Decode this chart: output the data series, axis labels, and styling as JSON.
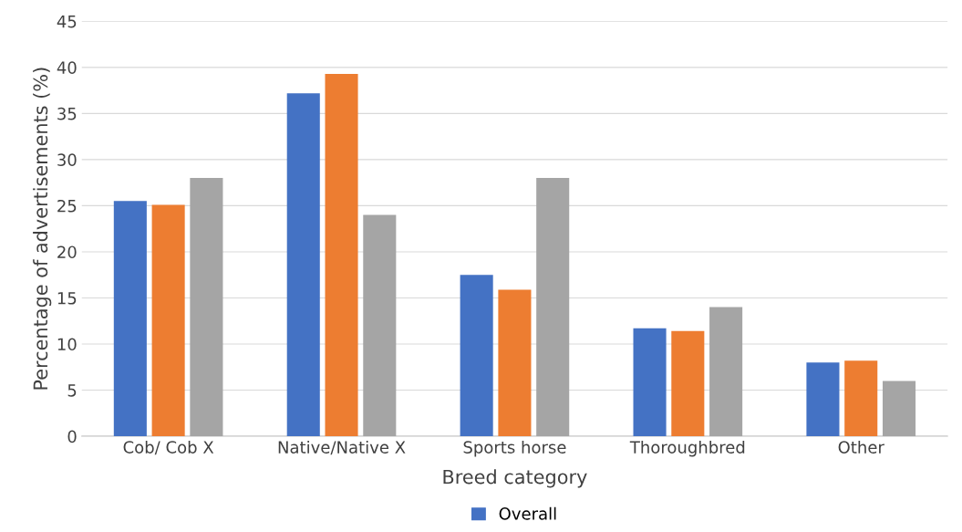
{
  "chart_data": {
    "type": "bar",
    "xlabel": "Breed category",
    "ylabel": "Percentage of advertisements (%)",
    "categories": [
      "Cob/ Cob X",
      "Native/Native X",
      "Sports horse",
      "Thoroughbred",
      "Other"
    ],
    "series": [
      {
        "name": "Overall",
        "color": "#4472c4",
        "values": [
          25.5,
          37.2,
          17.5,
          11.7,
          8.0
        ]
      },
      {
        "color": "#ed7d31",
        "values": [
          25.1,
          39.3,
          15.9,
          11.4,
          8.2
        ]
      },
      {
        "color": "#a5a5a5",
        "values": [
          28.0,
          24.0,
          28.0,
          14.0,
          6.0
        ]
      }
    ],
    "ylim": [
      0,
      45
    ],
    "yticks": [
      0,
      5,
      10,
      15,
      20,
      25,
      30,
      35,
      40,
      45
    ],
    "grid": "y",
    "legend": "bottom"
  }
}
